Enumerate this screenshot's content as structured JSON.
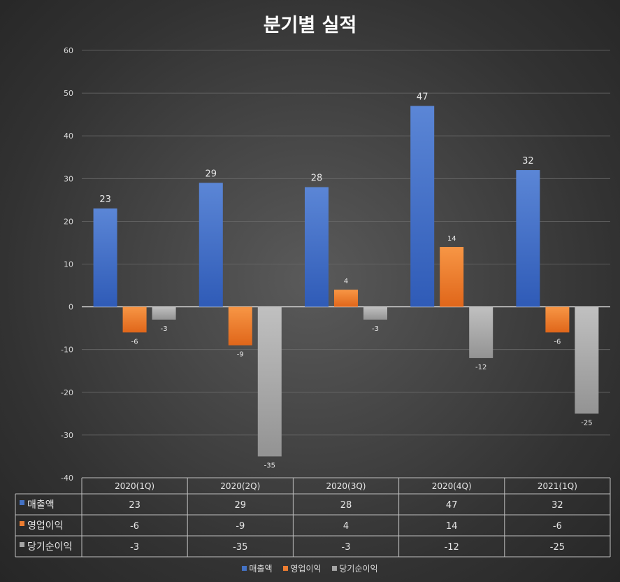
{
  "chart_data": {
    "type": "bar",
    "title": "분기별 실적",
    "categories": [
      "2020(1Q)",
      "2020(2Q)",
      "2020(3Q)",
      "2020(4Q)",
      "2021(1Q)"
    ],
    "series": [
      {
        "name": "매출액",
        "values": [
          23,
          29,
          28,
          47,
          32
        ],
        "color": "#4472c4"
      },
      {
        "name": "영업이익",
        "values": [
          -6,
          -9,
          4,
          14,
          -6
        ],
        "color": "#ed7d31"
      },
      {
        "name": "당기순이익",
        "values": [
          -3,
          -35,
          -3,
          -12,
          -25
        ],
        "color": "#a5a5a5"
      }
    ],
    "ylim": [
      -40,
      60
    ],
    "yticks": [
      60,
      50,
      40,
      30,
      20,
      10,
      0,
      -10,
      -20,
      -30,
      -40
    ],
    "grid": true,
    "data_table": true,
    "legend": "bottom"
  }
}
